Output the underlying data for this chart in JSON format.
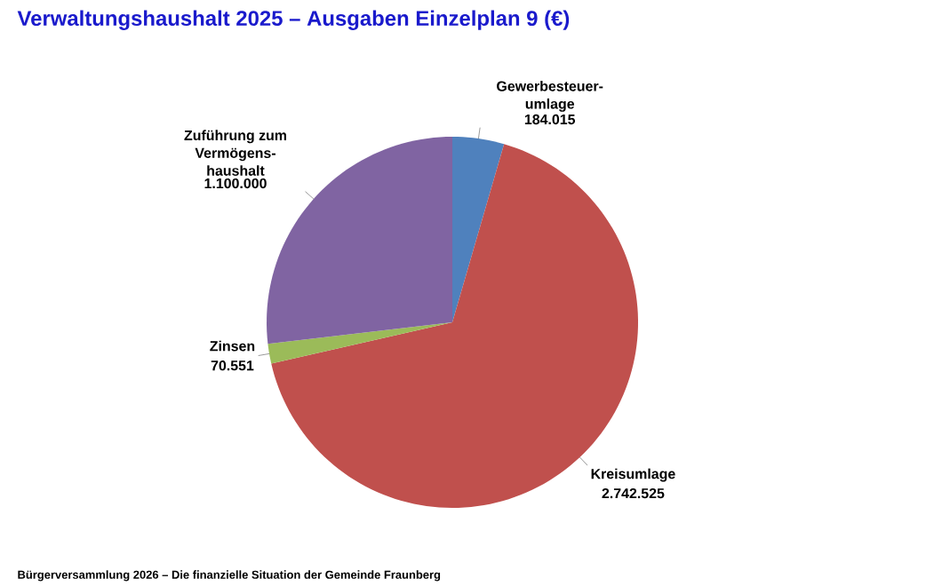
{
  "chart_data": {
    "type": "pie",
    "title": "Verwaltungshaushalt 2025 – Ausgaben Einzelplan 9 (€)",
    "categories": [
      "Gewerbesteuer-umlage",
      "Kreisumlage",
      "Zinsen",
      "Zuführung zum Vermögens-haushalt"
    ],
    "values": [
      184015,
      2742525,
      70551,
      1100000
    ],
    "value_labels": [
      "184.015",
      "2.742.525",
      "70.551",
      "1.100.000"
    ],
    "colors": [
      "#4f81bd",
      "#c0504d",
      "#9bbb59",
      "#8064a2"
    ],
    "annotations": [
      "Bürgerversammlung 2026 – Die finanzielle Situation der Gemeinde Fraunberg"
    ]
  }
}
